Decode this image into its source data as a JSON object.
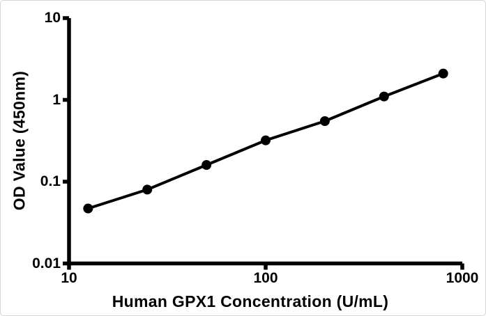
{
  "figure": {
    "background": "#ffffff",
    "border_color": "#d6d6d6",
    "text_color": "#000000"
  },
  "chart_data": {
    "type": "line",
    "title": "",
    "xlabel": "Human GPX1 Concentration (U/mL)",
    "ylabel": "OD Value (450nm)",
    "x_scale": "log",
    "y_scale": "log",
    "xlim": [
      10,
      1000
    ],
    "ylim": [
      0.01,
      10
    ],
    "grid": false,
    "legend": "none",
    "x": [
      12.5,
      25,
      50,
      100,
      200,
      400,
      800
    ],
    "y": [
      0.047,
      0.08,
      0.16,
      0.32,
      0.55,
      1.1,
      2.1
    ],
    "x_ticks": [
      {
        "value": 10,
        "label": "10"
      },
      {
        "value": 100,
        "label": "100"
      },
      {
        "value": 1000,
        "label": "1000"
      }
    ],
    "y_ticks": [
      {
        "value": 10,
        "label": "10"
      },
      {
        "value": 1,
        "label": "1"
      },
      {
        "value": 0.1,
        "label": "0.1"
      },
      {
        "value": 0.01,
        "label": "0.01"
      }
    ],
    "line": {
      "color": "#000000",
      "width": 4
    },
    "marker": {
      "shape": "circle",
      "radius": 7,
      "color": "#000000"
    },
    "axis": {
      "color": "#000000",
      "width": 5.5,
      "tick_length": 9
    }
  }
}
